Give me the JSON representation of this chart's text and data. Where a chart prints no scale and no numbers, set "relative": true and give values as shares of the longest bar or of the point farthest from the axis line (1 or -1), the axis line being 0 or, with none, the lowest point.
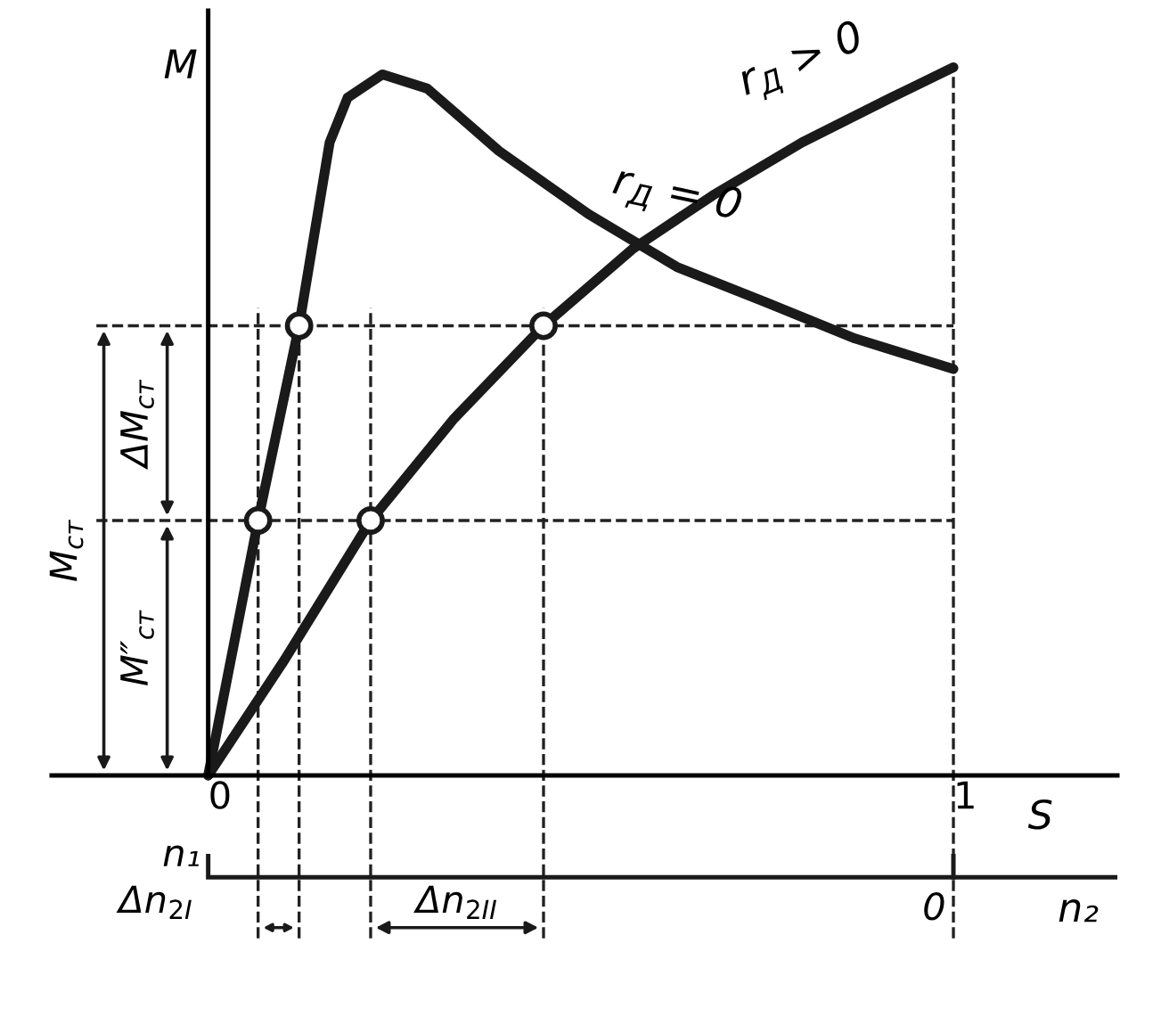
{
  "chart_data": {
    "type": "line",
    "relative": true,
    "xlabel": "S",
    "ylabel": "M",
    "xlim": [
      -0.21,
      1.22
    ],
    "xticks": [
      0,
      1
    ],
    "grid": false,
    "line_style": "solid",
    "marker": "none",
    "series": [
      {
        "name": "r$_{Д}$ = 0",
        "color": "#1a1a1a",
        "x": [
          0,
          0.067,
          0.122,
          0.163,
          0.187,
          0.234,
          0.294,
          0.39,
          0.51,
          0.629,
          0.749,
          0.868,
          1.0
        ],
        "values": [
          0,
          0.36,
          0.635,
          0.894,
          0.957,
          0.99,
          0.97,
          0.882,
          0.793,
          0.718,
          0.668,
          0.617,
          0.574
        ]
      },
      {
        "name": "r$_{Д}$ > 0",
        "color": "#1a1a1a",
        "x": [
          0,
          0.103,
          0.218,
          0.33,
          0.45,
          0.569,
          0.677,
          0.797,
          0.916,
          1.0
        ],
        "values": [
          0,
          0.164,
          0.36,
          0.504,
          0.635,
          0.743,
          0.819,
          0.894,
          0.957,
          1.0
        ]
      },
      {
        "type": "scatter",
        "marker": "circle",
        "color": "#1a1a1a",
        "x": [
          0.067,
          0.122,
          0.218,
          0.45
        ],
        "values": [
          0.36,
          0.635,
          0.36,
          0.635
        ]
      }
    ],
    "ref_lines": [
      {
        "axis": "y",
        "value": 0.635,
        "line_style": "dashed"
      },
      {
        "axis": "y",
        "value": 0.36,
        "line_style": "dashed"
      },
      {
        "axis": "x",
        "value": 0.067,
        "line_style": "dashed"
      },
      {
        "axis": "x",
        "value": 0.122,
        "line_style": "dashed"
      },
      {
        "axis": "x",
        "value": 0.218,
        "line_style": "dashed"
      },
      {
        "axis": "x",
        "value": 0.45,
        "line_style": "dashed"
      },
      {
        "axis": "x",
        "value": 1.0,
        "line_style": "dashed"
      }
    ],
    "annotations": [
      {
        "text": "M$_{ст}$"
      },
      {
        "text": "ΔM$_{ст}$"
      },
      {
        "text": "M″$_{ст}$"
      },
      {
        "text": "Δn$_{2I}$"
      },
      {
        "text": "Δn$_{2II}$"
      },
      {
        "text": "n₁"
      },
      {
        "text": "0"
      },
      {
        "text": "n₂"
      }
    ]
  }
}
